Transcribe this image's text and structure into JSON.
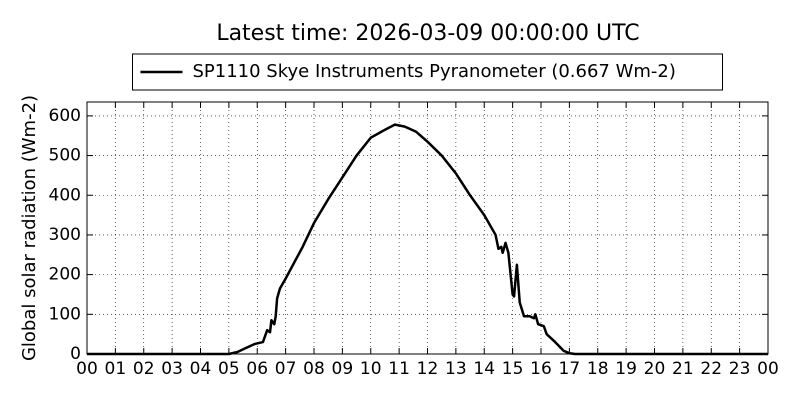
{
  "chart_data": {
    "type": "line",
    "title": "Latest time: 2026-03-09 00:00:00 UTC",
    "y_label": "Global solar radiation (Wm-2)",
    "legend": "upper center",
    "grid": true,
    "x": [
      0,
      5,
      5.3,
      5.6,
      5.9,
      6.2,
      6.35,
      6.45,
      6.5,
      6.6,
      6.65,
      6.7,
      6.8,
      7.0,
      7.3,
      7.6,
      8.0,
      8.5,
      9.0,
      9.5,
      10.0,
      10.5,
      10.85,
      11.2,
      11.6,
      12.0,
      12.5,
      13.0,
      13.5,
      14.0,
      14.4,
      14.5,
      14.6,
      14.65,
      14.75,
      14.85,
      15.0,
      15.05,
      15.15,
      15.25,
      15.4,
      15.6,
      15.75,
      15.8,
      15.9,
      16.1,
      16.2,
      16.5,
      16.8,
      17.0,
      17.2,
      24
    ],
    "series": [
      {
        "name": "SP1110 Skye Instruments Pyranometer (0.667 Wm-2)",
        "color": "#000000",
        "values": [
          0,
          0,
          5,
          15,
          25,
          30,
          60,
          55,
          85,
          75,
          95,
          140,
          165,
          190,
          230,
          270,
          330,
          390,
          445,
          500,
          545,
          565,
          578,
          573,
          560,
          535,
          500,
          455,
          400,
          350,
          300,
          265,
          270,
          255,
          280,
          255,
          150,
          145,
          225,
          130,
          95,
          95,
          90,
          100,
          75,
          70,
          50,
          30,
          8,
          2,
          0,
          0
        ]
      }
    ],
    "xlim": [
      0,
      24
    ],
    "xticks": [
      {
        "value": 0,
        "label": "00"
      },
      {
        "value": 1,
        "label": "01"
      },
      {
        "value": 2,
        "label": "02"
      },
      {
        "value": 3,
        "label": "03"
      },
      {
        "value": 4,
        "label": "04"
      },
      {
        "value": 5,
        "label": "05"
      },
      {
        "value": 6,
        "label": "06"
      },
      {
        "value": 7,
        "label": "07"
      },
      {
        "value": 8,
        "label": "08"
      },
      {
        "value": 9,
        "label": "09"
      },
      {
        "value": 10,
        "label": "10"
      },
      {
        "value": 11,
        "label": "11"
      },
      {
        "value": 12,
        "label": "12"
      },
      {
        "value": 13,
        "label": "13"
      },
      {
        "value": 14,
        "label": "14"
      },
      {
        "value": 15,
        "label": "15"
      },
      {
        "value": 16,
        "label": "16"
      },
      {
        "value": 17,
        "label": "17"
      },
      {
        "value": 18,
        "label": "18"
      },
      {
        "value": 19,
        "label": "19"
      },
      {
        "value": 20,
        "label": "20"
      },
      {
        "value": 21,
        "label": "21"
      },
      {
        "value": 22,
        "label": "22"
      },
      {
        "value": 23,
        "label": "23"
      },
      {
        "value": 24,
        "label": "00"
      }
    ],
    "ylim": [
      0,
      635
    ],
    "yticks": [
      0,
      100,
      200,
      300,
      400,
      500,
      600
    ]
  }
}
